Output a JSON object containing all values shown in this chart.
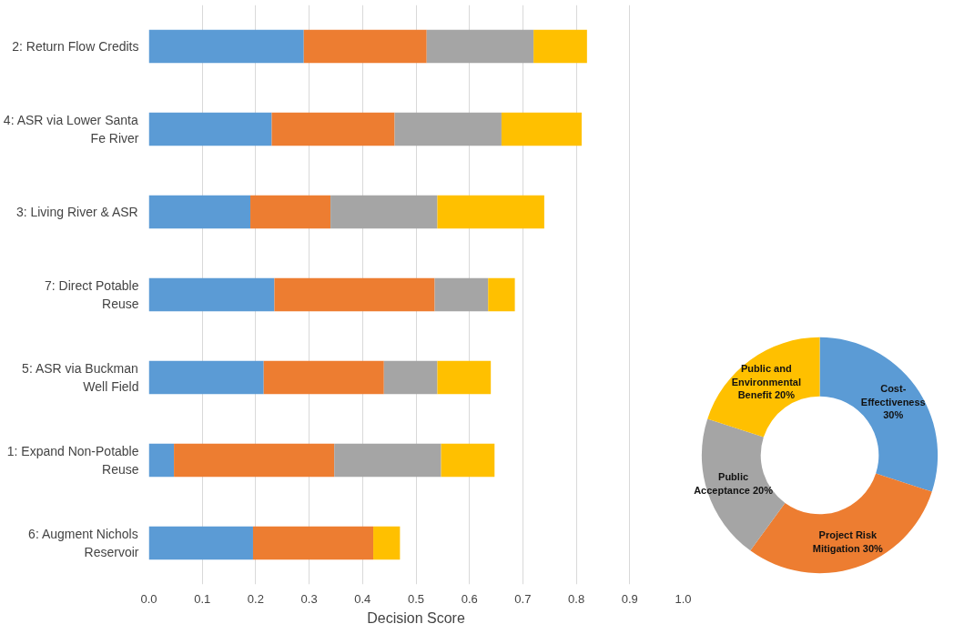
{
  "chart_data": [
    {
      "type": "bar",
      "orientation": "horizontal",
      "stacked": true,
      "xlabel": "Decision Score",
      "categories": [
        "2: Return Flow Credits",
        "4: ASR via Lower Santa Fe River",
        "3: Living River & ASR",
        "7: Direct Potable Reuse",
        "5: ASR via Buckman Well Field",
        "1: Expand Non-Potable Reuse",
        "6: Augment Nichols Reservoir"
      ],
      "series": [
        {
          "color": "#5b9bd5",
          "values": [
            0.29,
            0.23,
            0.19,
            0.235,
            0.215,
            0.047,
            0.195
          ]
        },
        {
          "color": "#ed7d31",
          "values": [
            0.23,
            0.23,
            0.15,
            0.3,
            0.225,
            0.3,
            0.225
          ]
        },
        {
          "color": "#a5a5a5",
          "values": [
            0.2,
            0.2,
            0.2,
            0.1,
            0.1,
            0.2,
            0
          ]
        },
        {
          "color": "#ffc000",
          "values": [
            0.1,
            0.15,
            0.2,
            0.05,
            0.1,
            0.1,
            0.05
          ]
        }
      ],
      "xlim": [
        0,
        1.0
      ],
      "xticks": [
        {
          "value": 0,
          "label": "0.0"
        },
        0.1,
        0.2,
        0.3,
        0.4,
        0.5,
        0.6,
        0.7,
        0.8,
        0.9,
        {
          "value": 1.0,
          "label": "1.0"
        }
      ],
      "grid": "x"
    },
    {
      "type": "donut",
      "categories": [
        "Cost-Effectiveness",
        "Project Risk Mitigation",
        "Public Acceptance",
        "Public and Environmental Benefit"
      ],
      "values": [
        30,
        30,
        20,
        20
      ],
      "value_labels": [
        "30%",
        "30%",
        "20%",
        "20%"
      ],
      "colors": [
        "#5b9bd5",
        "#ed7d31",
        "#a5a5a5",
        "#ffc000"
      ]
    }
  ]
}
